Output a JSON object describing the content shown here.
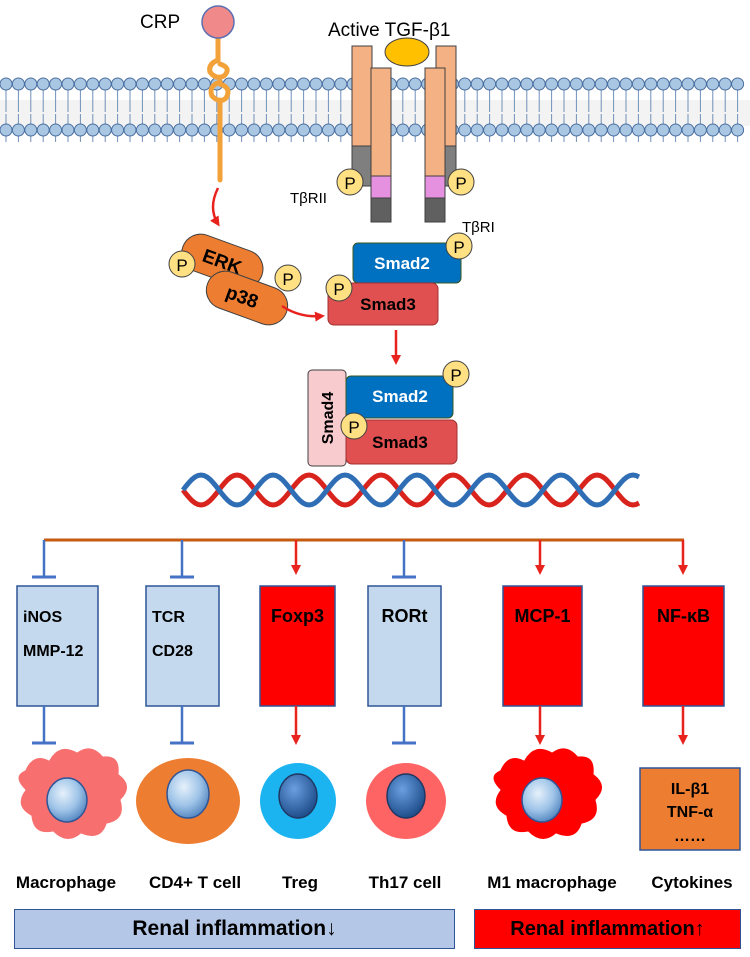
{
  "membrane": {
    "crp_label": "CRP",
    "tgf_label": "Active TGF-β1",
    "tbrii_label": "TβRII",
    "tbri_label": "TβRI"
  },
  "kinases": {
    "erk": "ERK",
    "p38": "p38"
  },
  "phospho_label": "P",
  "smad": {
    "smad2": "Smad2",
    "smad3": "Smad3",
    "smad4": "Smad4"
  },
  "targets": [
    {
      "lines": [
        "iNOS",
        "MMP-12"
      ],
      "effect": "inhibit",
      "box_color": "#c5d9ee",
      "cell": "Macrophage"
    },
    {
      "lines": [
        "TCR",
        "CD28"
      ],
      "effect": "inhibit",
      "box_color": "#c5d9ee",
      "cell": "CD4+ T cell"
    },
    {
      "lines": [
        "Foxp3"
      ],
      "effect": "activate",
      "box_color": "#ff0000",
      "cell": "Treg"
    },
    {
      "lines": [
        "RORt"
      ],
      "effect": "inhibit",
      "box_color": "#c5d9ee",
      "cell": "Th17 cell"
    },
    {
      "lines": [
        "MCP-1"
      ],
      "effect": "activate",
      "box_color": "#ff0000",
      "cell": "M1 macrophage"
    },
    {
      "lines": [
        "NF-κB"
      ],
      "effect": "activate",
      "box_color": "#ff0000",
      "cell": "Cytokines"
    }
  ],
  "cytokines_box": [
    "IL-β1",
    "TNF-α",
    "……"
  ],
  "footer": {
    "left": "Renal inflammation↓",
    "right": "Renal inflammation↑",
    "left_color": "#b4c7e7",
    "right_color": "#ff0000"
  },
  "colors": {
    "activate_arrow": "#e8231e",
    "inhibit_bar": "#4472c4",
    "membrane_head": "#a9c6e2",
    "receptor": "#f4b183",
    "kinase": "#ed7d31",
    "smad2": "#0070c0",
    "smad3": "#e05050",
    "smad4": "#f8cbcf",
    "phospho": "#ffe082",
    "dna_red": "#d9231d",
    "dna_blue": "#2f6eb5"
  }
}
